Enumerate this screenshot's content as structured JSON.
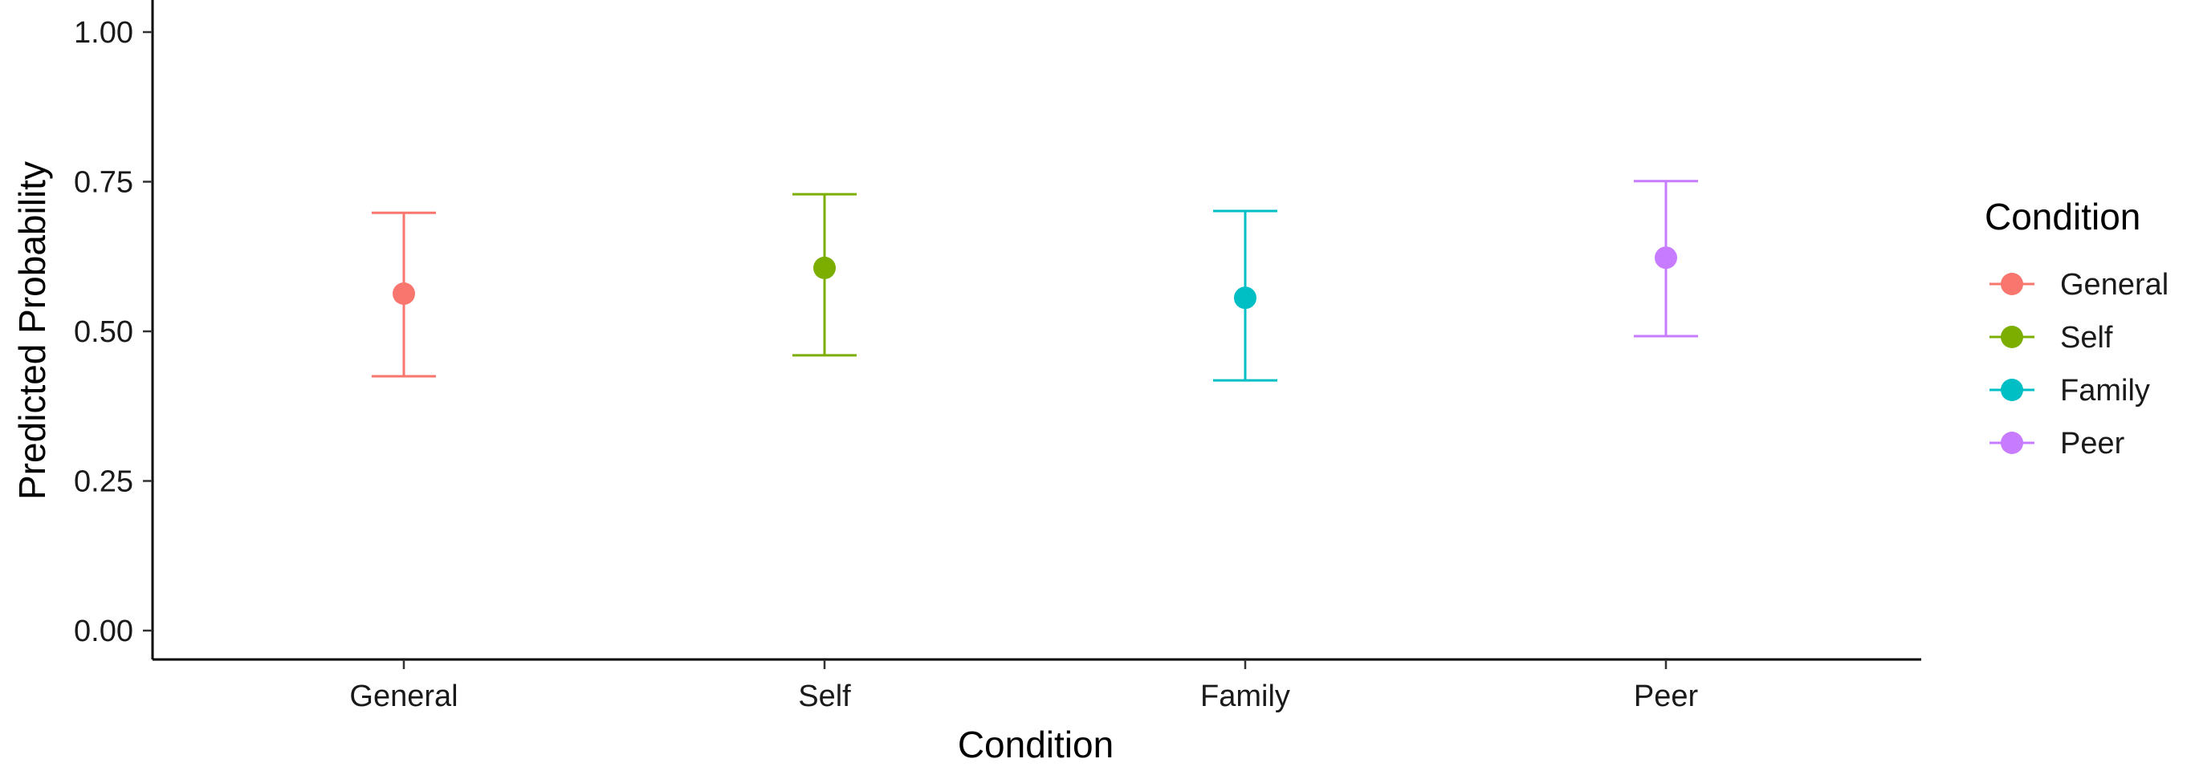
{
  "chart_data": {
    "type": "scatter",
    "subtype": "point-with-errorbars",
    "title": "",
    "xlabel": "Condition",
    "ylabel": "Predicted Probability",
    "ylim": [
      0,
      1
    ],
    "yticks": [
      "0.00",
      "0.25",
      "0.50",
      "0.75",
      "1.00"
    ],
    "ytick_values": [
      0,
      0.25,
      0.5,
      0.75,
      1.0
    ],
    "categories": [
      "General",
      "Self",
      "Family",
      "Peer"
    ],
    "series": [
      {
        "name": "General",
        "value": 0.563,
        "lower": 0.425,
        "upper": 0.698,
        "color": "#F8766D"
      },
      {
        "name": "Self",
        "value": 0.606,
        "lower": 0.46,
        "upper": 0.729,
        "color": "#7CAE00"
      },
      {
        "name": "Family",
        "value": 0.556,
        "lower": 0.418,
        "upper": 0.701,
        "color": "#00BFC4"
      },
      {
        "name": "Peer",
        "value": 0.623,
        "lower": 0.492,
        "upper": 0.751,
        "color": "#C77CFF"
      }
    ],
    "grid": false,
    "legend": {
      "title": "Condition",
      "placement": "right",
      "entries": [
        "General",
        "Self",
        "Family",
        "Peer"
      ]
    }
  }
}
